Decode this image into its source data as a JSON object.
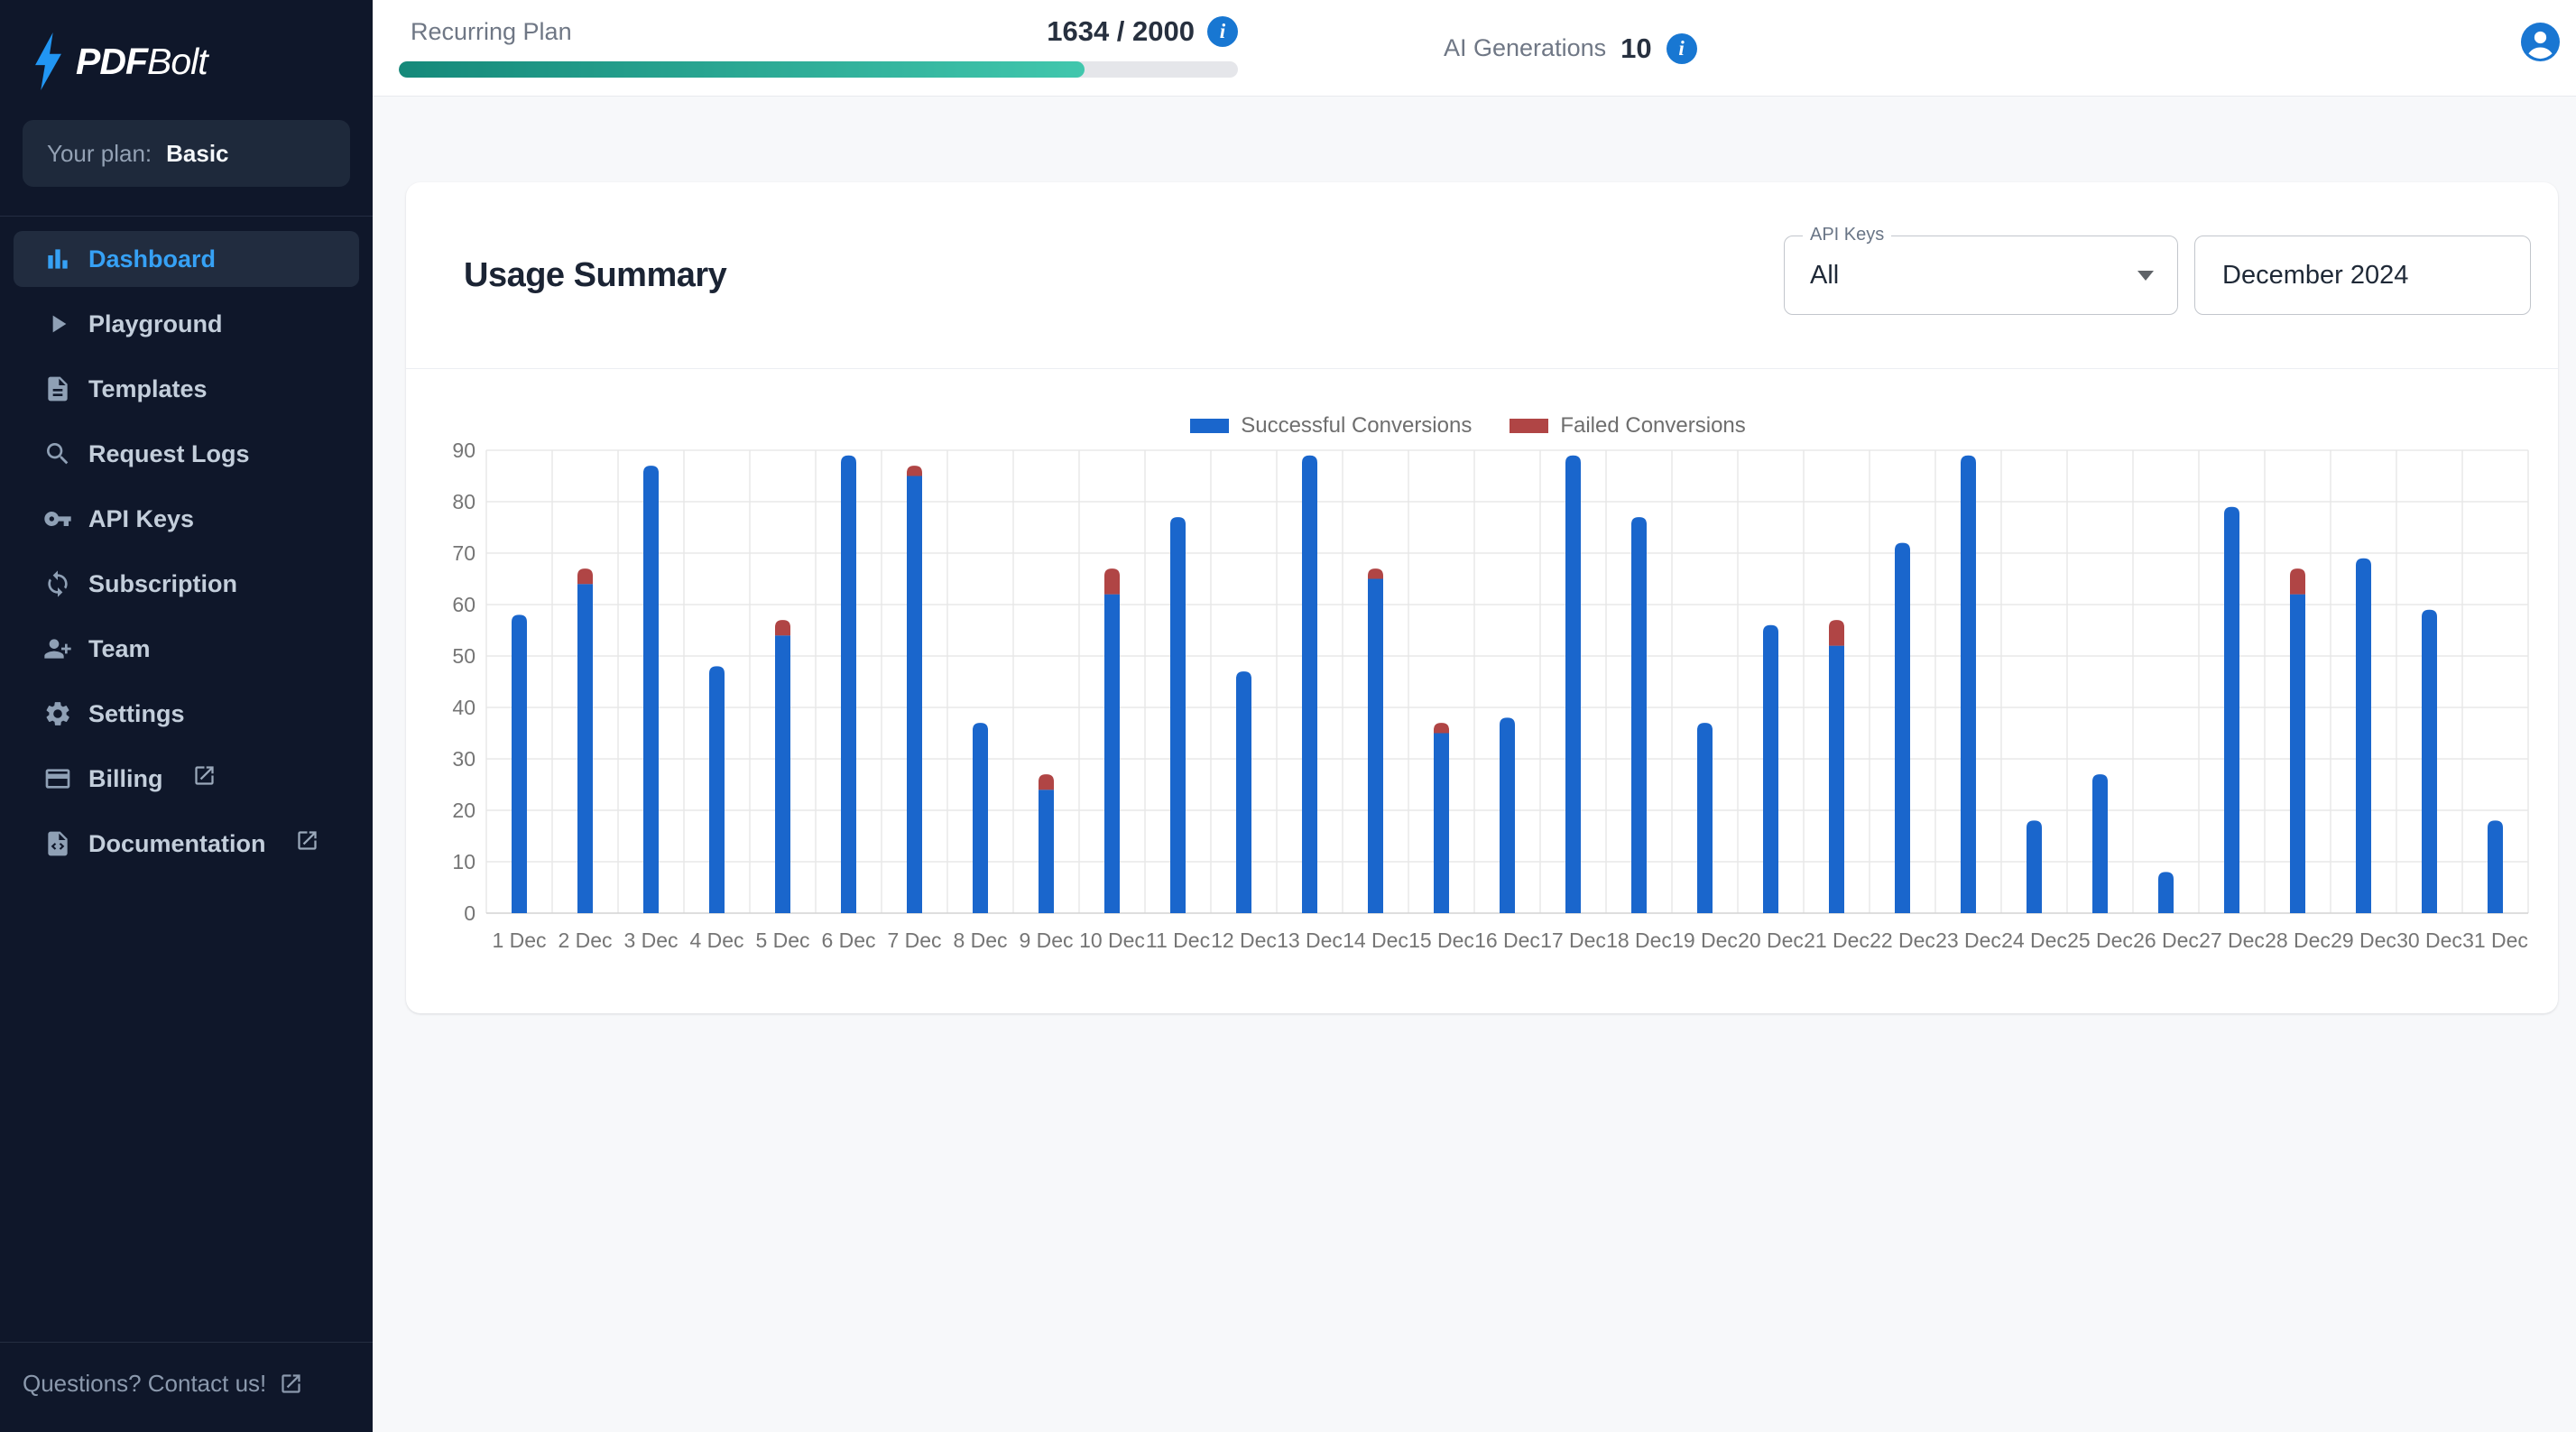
{
  "sidebar": {
    "logo": {
      "brand_bold": "PDF",
      "brand_light": "Bolt"
    },
    "plan": {
      "label": "Your plan:",
      "value": "Basic"
    },
    "items": [
      {
        "label": "Dashboard",
        "icon": "bar-chart-icon",
        "active": true,
        "external": false
      },
      {
        "label": "Playground",
        "icon": "play-icon",
        "active": false,
        "external": false
      },
      {
        "label": "Templates",
        "icon": "document-icon",
        "active": false,
        "external": false
      },
      {
        "label": "Request Logs",
        "icon": "search-icon",
        "active": false,
        "external": false
      },
      {
        "label": "API Keys",
        "icon": "key-icon",
        "active": false,
        "external": false
      },
      {
        "label": "Subscription",
        "icon": "refresh-icon",
        "active": false,
        "external": false
      },
      {
        "label": "Team",
        "icon": "team-icon",
        "active": false,
        "external": false
      },
      {
        "label": "Settings",
        "icon": "gear-icon",
        "active": false,
        "external": false
      },
      {
        "label": "Billing",
        "icon": "credit-card-icon",
        "active": false,
        "external": true
      },
      {
        "label": "Documentation",
        "icon": "doc-code-icon",
        "active": false,
        "external": true
      }
    ],
    "footer": {
      "label": "Questions? Contact us!"
    }
  },
  "topbar": {
    "usage": {
      "label": "Recurring Plan",
      "value": "1634 / 2000",
      "used": 1634,
      "limit": 2000,
      "progress_pct": 81.7
    },
    "ai": {
      "label": "AI Generations",
      "value": "10"
    }
  },
  "card": {
    "title": "Usage Summary",
    "api_keys": {
      "label": "API Keys",
      "value": "All"
    },
    "month": "December 2024"
  },
  "chart_data": {
    "type": "bar",
    "stacked": true,
    "title": "",
    "xlabel": "",
    "ylabel": "",
    "ylim": [
      0,
      90
    ],
    "ytick_step": 10,
    "grid": true,
    "legend_position": "top-center",
    "categories": [
      "1 Dec",
      "2 Dec",
      "3 Dec",
      "4 Dec",
      "5 Dec",
      "6 Dec",
      "7 Dec",
      "8 Dec",
      "9 Dec",
      "10 Dec",
      "11 Dec",
      "12 Dec",
      "13 Dec",
      "14 Dec",
      "15 Dec",
      "16 Dec",
      "17 Dec",
      "18 Dec",
      "19 Dec",
      "20 Dec",
      "21 Dec",
      "22 Dec",
      "23 Dec",
      "24 Dec",
      "25 Dec",
      "26 Dec",
      "27 Dec",
      "28 Dec",
      "29 Dec",
      "30 Dec",
      "31 Dec"
    ],
    "series": [
      {
        "name": "Successful Conversions",
        "color": "#1a66cc",
        "values": [
          58,
          64,
          87,
          48,
          54,
          89,
          85,
          37,
          24,
          62,
          77,
          47,
          89,
          65,
          35,
          38,
          89,
          77,
          37,
          56,
          52,
          72,
          89,
          18,
          27,
          8,
          79,
          62,
          69,
          59,
          18
        ]
      },
      {
        "name": "Failed Conversions",
        "color": "#b04545",
        "values": [
          0,
          3,
          0,
          0,
          3,
          0,
          2,
          0,
          3,
          5,
          0,
          0,
          0,
          2,
          2,
          0,
          0,
          0,
          0,
          0,
          5,
          0,
          0,
          0,
          0,
          0,
          0,
          5,
          0,
          0,
          0
        ]
      }
    ]
  },
  "colors": {
    "sidebar_bg": "#0f172a",
    "active_item_bg": "#212c3f",
    "active_blue": "#36a1f5",
    "logo_blue": "#2196f3",
    "info_blue": "#1877d2",
    "avatar_blue": "#1976d2",
    "progress_start": "#15897a",
    "progress_end": "#41c7ad",
    "success_bar": "#1a66cc",
    "failed_bar": "#b04545"
  }
}
